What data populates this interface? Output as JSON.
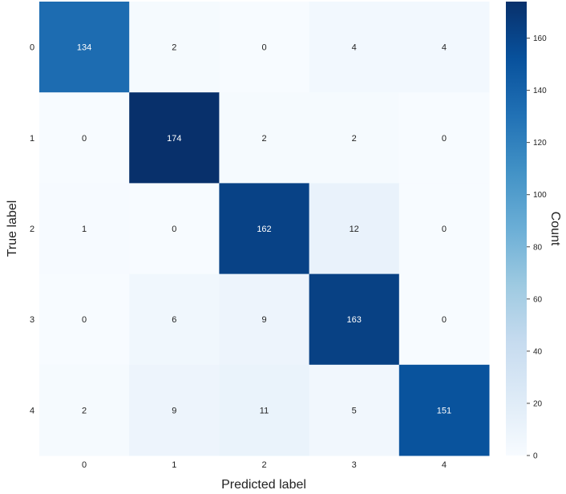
{
  "chart_data": {
    "type": "heatmap",
    "title": "",
    "xlabel": "Predicted label",
    "ylabel": "True label",
    "x_categories": [
      "0",
      "1",
      "2",
      "3",
      "4"
    ],
    "y_categories": [
      "0",
      "1",
      "2",
      "3",
      "4"
    ],
    "values": [
      [
        134,
        2,
        0,
        4,
        4
      ],
      [
        0,
        174,
        2,
        2,
        0
      ],
      [
        1,
        0,
        162,
        12,
        0
      ],
      [
        0,
        6,
        9,
        163,
        0
      ],
      [
        2,
        9,
        11,
        5,
        151
      ]
    ],
    "colorbar": {
      "label": "Count",
      "range": [
        0,
        174
      ],
      "ticks": [
        0,
        20,
        40,
        60,
        80,
        100,
        120,
        140,
        160
      ]
    },
    "colormap": "Blues",
    "grid": false
  }
}
